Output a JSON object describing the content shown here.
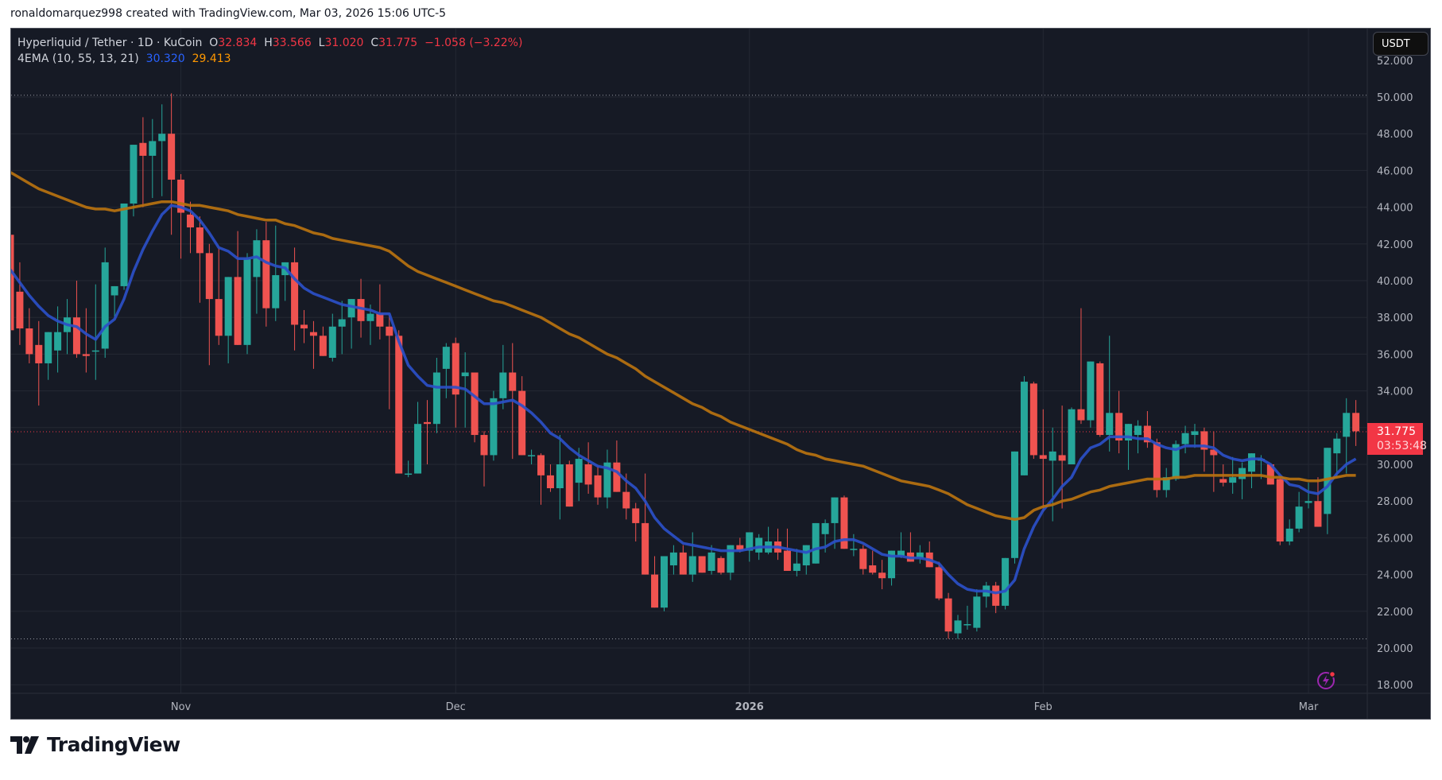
{
  "caption": "ronaldomarquez998 created with TradingView.com, Mar 03, 2026 15:06 UTC-5",
  "legend": {
    "symbol": "Hyperliquid / Tether · 1D · KuCoin",
    "o_label": "O",
    "o": "32.834",
    "h_label": "H",
    "h": "33.566",
    "l_label": "L",
    "l": "31.020",
    "c_label": "C",
    "c": "31.775",
    "change": "−1.058 (−3.22%)",
    "indicator": "4EMA (10, 55, 13, 21)",
    "ema_fast": "30.320",
    "ema_slow": "29.413"
  },
  "currency_button": "USDT",
  "last_price": {
    "price": "31.775",
    "countdown": "03:53:48"
  },
  "branding": "TradingView",
  "colors": {
    "background": "#161a25",
    "grid": "#242833",
    "up": "#26a69a",
    "down": "#ef5350",
    "ema_fast": "#2b4fc7",
    "ema_slow": "#b8720f",
    "last_price": "#f23645",
    "axis_text": "#b2b5be"
  },
  "chart_data": {
    "type": "candlestick",
    "title": "Hyperliquid / Tether · 1D · KuCoin",
    "xlabel": "",
    "ylabel": "USDT",
    "ylim": [
      17.3,
      52.5
    ],
    "y_ticks": [
      18,
      20,
      22,
      24,
      26,
      28,
      30,
      32,
      34,
      36,
      38,
      40,
      42,
      44,
      46,
      48,
      50
    ],
    "x_ticks": [
      {
        "label": "Nov",
        "index": 18
      },
      {
        "label": "Dec",
        "index": 47
      },
      {
        "label": "2026",
        "index": 78
      },
      {
        "label": "Feb",
        "index": 109
      },
      {
        "label": "Mar",
        "index": 137
      }
    ],
    "grid": true,
    "horizontal_dotted_lines": [
      50.1,
      20.5
    ],
    "last_price_line": 31.775,
    "candles_ohlc": [
      [
        42.5,
        42.5,
        37.2,
        37.3
      ],
      [
        39.4,
        41.0,
        36.5,
        37.4
      ],
      [
        37.4,
        38.5,
        35.5,
        36.0
      ],
      [
        36.5,
        37.8,
        33.2,
        35.5
      ],
      [
        35.5,
        37.0,
        34.6,
        37.2
      ],
      [
        36.2,
        38.6,
        35.0,
        37.2
      ],
      [
        37.2,
        39.0,
        36.0,
        38.0
      ],
      [
        38.0,
        40.0,
        35.8,
        36.0
      ],
      [
        36.0,
        38.5,
        35.0,
        35.9
      ],
      [
        36.2,
        39.8,
        34.6,
        36.2
      ],
      [
        36.3,
        41.8,
        35.8,
        41.0
      ],
      [
        39.2,
        39.5,
        38.0,
        39.7
      ],
      [
        39.7,
        43.0,
        39.5,
        44.2
      ],
      [
        44.2,
        47.3,
        43.5,
        47.4
      ],
      [
        47.5,
        48.9,
        44.0,
        46.8
      ],
      [
        46.8,
        48.8,
        44.5,
        47.6
      ],
      [
        47.6,
        49.6,
        44.6,
        48.0
      ],
      [
        48.0,
        50.2,
        42.5,
        45.5
      ],
      [
        45.5,
        45.8,
        41.2,
        43.7
      ],
      [
        43.6,
        44.3,
        41.5,
        42.9
      ],
      [
        42.9,
        43.5,
        38.8,
        41.5
      ],
      [
        41.5,
        42.0,
        35.4,
        39.0
      ],
      [
        39.0,
        41.8,
        36.5,
        37.0
      ],
      [
        37.0,
        39.3,
        35.5,
        40.2
      ],
      [
        40.2,
        42.7,
        37.3,
        36.5
      ],
      [
        36.5,
        41.5,
        36.0,
        41.2
      ],
      [
        40.2,
        42.8,
        38.2,
        42.2
      ],
      [
        42.2,
        43.2,
        37.5,
        38.5
      ],
      [
        38.5,
        43.0,
        37.8,
        40.3
      ],
      [
        40.3,
        41.0,
        38.9,
        41.0
      ],
      [
        41.0,
        41.8,
        36.2,
        37.6
      ],
      [
        37.6,
        38.4,
        36.6,
        37.4
      ],
      [
        37.2,
        37.8,
        35.2,
        37.0
      ],
      [
        37.0,
        37.5,
        36.3,
        35.9
      ],
      [
        35.8,
        38.2,
        35.6,
        37.5
      ],
      [
        37.5,
        38.9,
        36.0,
        37.9
      ],
      [
        38.0,
        39.0,
        36.3,
        39.0
      ],
      [
        39.0,
        40.1,
        36.9,
        37.8
      ],
      [
        37.8,
        38.7,
        36.5,
        38.2
      ],
      [
        38.2,
        39.8,
        36.8,
        37.5
      ],
      [
        37.5,
        38.1,
        33.0,
        37.0
      ],
      [
        37.0,
        37.3,
        29.5,
        29.5
      ],
      [
        29.5,
        30.2,
        29.3,
        29.5
      ],
      [
        29.5,
        33.4,
        30.0,
        32.2
      ],
      [
        32.3,
        33.5,
        30.0,
        32.2
      ],
      [
        32.2,
        35.8,
        31.7,
        35.0
      ],
      [
        35.2,
        36.6,
        33.6,
        36.4
      ],
      [
        36.6,
        36.9,
        32.0,
        33.8
      ],
      [
        34.8,
        36.1,
        32.0,
        35.0
      ],
      [
        35.0,
        35.0,
        31.2,
        31.6
      ],
      [
        31.6,
        31.8,
        28.8,
        30.5
      ],
      [
        30.5,
        34.0,
        30.2,
        33.6
      ],
      [
        33.6,
        36.5,
        33.0,
        35.0
      ],
      [
        35.0,
        36.6,
        30.3,
        34.0
      ],
      [
        34.0,
        34.8,
        31.0,
        30.5
      ],
      [
        30.5,
        30.8,
        30.0,
        30.5
      ],
      [
        30.5,
        30.6,
        27.8,
        29.4
      ],
      [
        29.4,
        30.0,
        28.5,
        28.7
      ],
      [
        28.7,
        31.6,
        27.0,
        30.0
      ],
      [
        30.0,
        30.2,
        28.4,
        27.7
      ],
      [
        29.0,
        30.9,
        28.0,
        30.3
      ],
      [
        30.0,
        31.2,
        28.4,
        28.9
      ],
      [
        29.4,
        29.9,
        27.8,
        28.2
      ],
      [
        28.2,
        30.8,
        27.6,
        30.1
      ],
      [
        30.1,
        31.3,
        29.0,
        28.5
      ],
      [
        28.5,
        29.5,
        27.0,
        27.6
      ],
      [
        27.6,
        27.9,
        25.8,
        26.8
      ],
      [
        26.8,
        29.5,
        26.0,
        24.0
      ],
      [
        24.0,
        25.0,
        22.5,
        22.2
      ],
      [
        22.2,
        24.5,
        22.0,
        25.0
      ],
      [
        24.5,
        25.6,
        24.0,
        25.2
      ],
      [
        25.2,
        25.6,
        24.0,
        24.0
      ],
      [
        24.0,
        26.3,
        23.6,
        25.0
      ],
      [
        25.0,
        25.0,
        24.2,
        24.1
      ],
      [
        24.2,
        25.6,
        24.0,
        25.2
      ],
      [
        24.9,
        25.0,
        24.0,
        24.1
      ],
      [
        24.1,
        25.5,
        23.7,
        25.6
      ],
      [
        25.6,
        26.0,
        25.2,
        25.3
      ],
      [
        25.3,
        26.2,
        24.7,
        26.3
      ],
      [
        25.2,
        26.2,
        24.8,
        26.0
      ],
      [
        25.2,
        26.6,
        25.1,
        25.8
      ],
      [
        25.8,
        26.5,
        24.8,
        25.2
      ],
      [
        25.3,
        26.5,
        24.5,
        24.2
      ],
      [
        24.2,
        25.4,
        23.9,
        24.6
      ],
      [
        24.5,
        25.0,
        24.0,
        25.6
      ],
      [
        24.6,
        26.8,
        25.1,
        26.8
      ],
      [
        26.2,
        27.0,
        25.2,
        26.8
      ],
      [
        26.8,
        27.0,
        25.4,
        28.2
      ],
      [
        28.2,
        28.3,
        26.4,
        25.4
      ],
      [
        25.4,
        26.2,
        25.0,
        25.4
      ],
      [
        25.4,
        25.6,
        24.0,
        24.3
      ],
      [
        24.5,
        25.3,
        24.0,
        24.1
      ],
      [
        24.1,
        24.8,
        23.2,
        23.8
      ],
      [
        23.8,
        25.2,
        23.4,
        25.3
      ],
      [
        25.0,
        26.3,
        24.9,
        25.3
      ],
      [
        25.2,
        26.3,
        24.9,
        24.7
      ],
      [
        24.9,
        25.6,
        24.6,
        25.2
      ],
      [
        25.2,
        25.8,
        24.5,
        24.4
      ],
      [
        24.4,
        24.7,
        22.6,
        22.7
      ],
      [
        22.7,
        23.0,
        20.5,
        20.9
      ],
      [
        20.8,
        21.8,
        20.5,
        21.5
      ],
      [
        21.3,
        22.3,
        21.0,
        21.3
      ],
      [
        21.1,
        23.2,
        20.9,
        22.8
      ],
      [
        22.8,
        23.6,
        22.2,
        23.4
      ],
      [
        23.4,
        23.6,
        21.9,
        22.3
      ],
      [
        22.3,
        24.6,
        22.1,
        24.9
      ],
      [
        24.9,
        26.2,
        24.6,
        30.7
      ],
      [
        29.4,
        34.8,
        29.5,
        34.5
      ],
      [
        34.4,
        34.5,
        30.3,
        30.5
      ],
      [
        30.5,
        33.0,
        27.4,
        30.3
      ],
      [
        30.2,
        32.0,
        26.9,
        30.7
      ],
      [
        30.5,
        33.2,
        27.6,
        30.2
      ],
      [
        30.0,
        33.1,
        30.0,
        33.0
      ],
      [
        33.0,
        38.5,
        32.2,
        32.4
      ],
      [
        32.4,
        35.6,
        32.0,
        35.6
      ],
      [
        35.5,
        35.6,
        31.5,
        31.6
      ],
      [
        31.6,
        37.0,
        30.7,
        32.8
      ],
      [
        32.8,
        34.0,
        30.6,
        31.3
      ],
      [
        31.3,
        32.2,
        29.7,
        32.2
      ],
      [
        31.6,
        32.4,
        30.6,
        32.1
      ],
      [
        32.1,
        32.9,
        30.9,
        31.2
      ],
      [
        31.2,
        31.4,
        28.2,
        28.6
      ],
      [
        28.6,
        29.8,
        28.2,
        29.3
      ],
      [
        29.2,
        31.3,
        29.1,
        31.1
      ],
      [
        31.1,
        32.1,
        30.6,
        31.7
      ],
      [
        31.6,
        32.2,
        30.9,
        31.8
      ],
      [
        31.8,
        32.0,
        29.6,
        30.8
      ],
      [
        30.8,
        31.8,
        28.5,
        30.5
      ],
      [
        29.2,
        30.0,
        28.8,
        29.0
      ],
      [
        29.0,
        30.4,
        28.4,
        29.3
      ],
      [
        29.2,
        30.1,
        28.1,
        29.8
      ],
      [
        29.6,
        30.5,
        28.7,
        30.6
      ],
      [
        30.2,
        30.5,
        29.2,
        30.3
      ],
      [
        30.0,
        29.9,
        28.9,
        28.9
      ],
      [
        29.2,
        29.3,
        25.6,
        25.8
      ],
      [
        25.8,
        27.0,
        25.6,
        26.5
      ],
      [
        26.5,
        28.5,
        26.3,
        27.7
      ],
      [
        27.9,
        29.0,
        27.6,
        28.0
      ],
      [
        28.0,
        29.3,
        26.8,
        26.6
      ],
      [
        27.3,
        30.2,
        26.2,
        30.9
      ],
      [
        30.6,
        31.7,
        29.3,
        31.4
      ],
      [
        31.5,
        33.6,
        29.5,
        32.8
      ],
      [
        32.8,
        33.5,
        31.0,
        31.8
      ]
    ],
    "series": [
      {
        "name": "EMA 10",
        "color": "#2b4fc7",
        "last": 30.32,
        "values": [
          40.6,
          39.9,
          39.2,
          38.6,
          38.1,
          37.8,
          37.6,
          37.5,
          37.1,
          36.8,
          37.5,
          37.9,
          39.0,
          40.5,
          41.7,
          42.7,
          43.6,
          44.1,
          44.0,
          43.8,
          43.3,
          42.6,
          41.8,
          41.6,
          41.2,
          41.2,
          41.3,
          41.0,
          40.8,
          40.7,
          40.1,
          39.6,
          39.3,
          39.1,
          38.9,
          38.7,
          38.6,
          38.5,
          38.4,
          38.2,
          38.2,
          36.7,
          35.4,
          34.8,
          34.3,
          34.2,
          34.2,
          34.2,
          34.1,
          33.7,
          33.3,
          33.3,
          33.4,
          33.5,
          33.2,
          32.8,
          32.3,
          31.7,
          31.4,
          30.9,
          30.5,
          30.2,
          29.9,
          29.8,
          29.6,
          29.1,
          28.7,
          28.0,
          27.1,
          26.5,
          26.1,
          25.7,
          25.6,
          25.5,
          25.4,
          25.3,
          25.3,
          25.3,
          25.4,
          25.5,
          25.5,
          25.5,
          25.4,
          25.3,
          25.2,
          25.4,
          25.5,
          25.8,
          25.9,
          25.9,
          25.7,
          25.4,
          25.1,
          25.0,
          25.0,
          24.9,
          24.9,
          24.8,
          24.6,
          24.0,
          23.5,
          23.2,
          23.1,
          23.1,
          23.0,
          23.1,
          23.7,
          25.4,
          26.6,
          27.5,
          28.1,
          28.8,
          29.3,
          30.3,
          30.9,
          31.1,
          31.5,
          31.5,
          31.5,
          31.4,
          31.4,
          31.1,
          30.9,
          30.8,
          31.0,
          31.0,
          31.0,
          30.9,
          30.5,
          30.3,
          30.2,
          30.3,
          30.3,
          30.0,
          29.4,
          28.9,
          28.8,
          28.5,
          28.4,
          28.8,
          29.5,
          30.0,
          30.3
        ]
      },
      {
        "name": "EMA 55",
        "color": "#b8720f",
        "last": 29.413,
        "values": [
          45.9,
          45.6,
          45.3,
          45.0,
          44.8,
          44.6,
          44.4,
          44.2,
          44.0,
          43.9,
          43.9,
          43.8,
          43.9,
          44.0,
          44.1,
          44.2,
          44.3,
          44.3,
          44.2,
          44.1,
          44.1,
          44.0,
          43.9,
          43.8,
          43.6,
          43.5,
          43.4,
          43.3,
          43.3,
          43.1,
          43.0,
          42.8,
          42.6,
          42.5,
          42.3,
          42.2,
          42.1,
          42.0,
          41.9,
          41.8,
          41.6,
          41.2,
          40.8,
          40.5,
          40.3,
          40.1,
          39.9,
          39.7,
          39.5,
          39.3,
          39.1,
          38.9,
          38.8,
          38.6,
          38.4,
          38.2,
          38.0,
          37.7,
          37.4,
          37.1,
          36.9,
          36.6,
          36.3,
          36.0,
          35.8,
          35.5,
          35.2,
          34.8,
          34.5,
          34.2,
          33.9,
          33.6,
          33.3,
          33.1,
          32.8,
          32.6,
          32.3,
          32.1,
          31.9,
          31.7,
          31.5,
          31.3,
          31.1,
          30.8,
          30.6,
          30.5,
          30.3,
          30.2,
          30.1,
          30.0,
          29.9,
          29.7,
          29.5,
          29.3,
          29.1,
          29.0,
          28.9,
          28.8,
          28.6,
          28.4,
          28.1,
          27.8,
          27.6,
          27.4,
          27.2,
          27.1,
          27.0,
          27.1,
          27.5,
          27.7,
          27.8,
          28.0,
          28.1,
          28.3,
          28.5,
          28.6,
          28.8,
          28.9,
          29.0,
          29.1,
          29.2,
          29.2,
          29.2,
          29.3,
          29.3,
          29.4,
          29.4,
          29.4,
          29.4,
          29.4,
          29.4,
          29.4,
          29.4,
          29.3,
          29.3,
          29.2,
          29.2,
          29.1,
          29.1,
          29.2,
          29.3,
          29.4,
          29.4
        ]
      }
    ]
  }
}
